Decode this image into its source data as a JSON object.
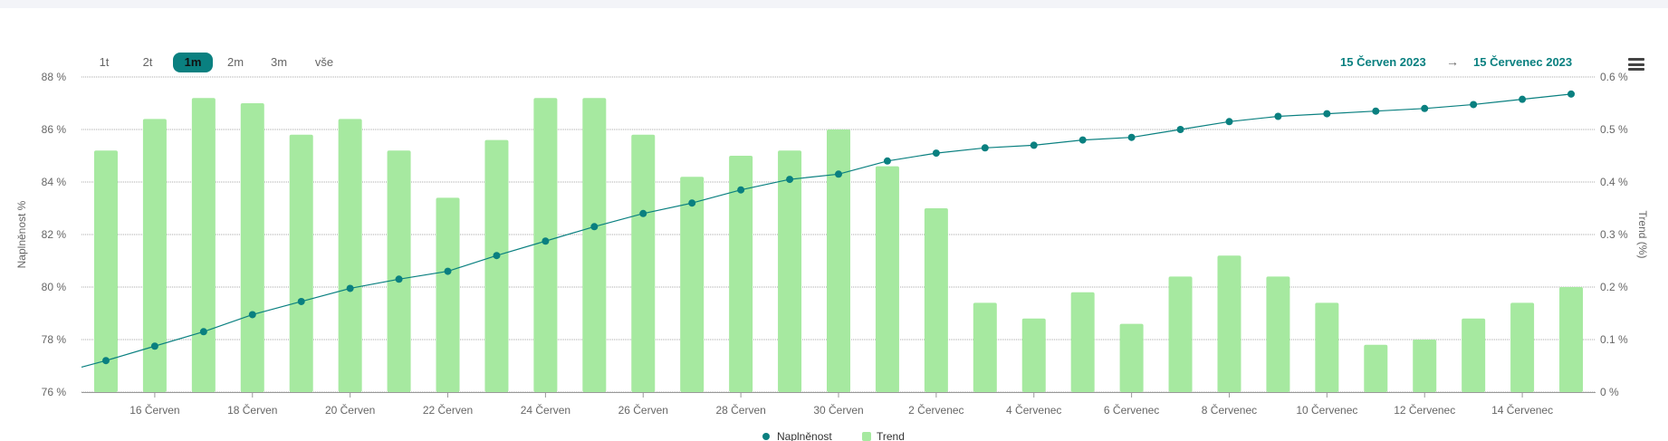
{
  "range_selector": {
    "buttons": [
      {
        "label": "1t",
        "active": false
      },
      {
        "label": "2t",
        "active": false
      },
      {
        "label": "1m",
        "active": true
      },
      {
        "label": "2m",
        "active": false
      },
      {
        "label": "3m",
        "active": false
      },
      {
        "label": "vše",
        "active": false
      }
    ],
    "from_date": "15 Červen 2023",
    "arrow": "→",
    "to_date": "15 Červenec 2023"
  },
  "menu": {
    "icon": "hamburger-menu-icon"
  },
  "colors": {
    "line": "#0a8080",
    "bar": "#a6e9a0",
    "grid": "#555555"
  },
  "chart_data": {
    "type": "bar+line",
    "categories": [
      "15 Červen",
      "16 Červen",
      "17 Červen",
      "18 Červen",
      "19 Červen",
      "20 Červen",
      "21 Červen",
      "22 Červen",
      "23 Červen",
      "24 Červen",
      "25 Červen",
      "26 Červen",
      "27 Červen",
      "28 Červen",
      "29 Červen",
      "30 Červen",
      "1 Červenec",
      "2 Červenec",
      "3 Červenec",
      "4 Červenec",
      "5 Červenec",
      "6 Červenec",
      "7 Červenec",
      "8 Červenec",
      "9 Červenec",
      "10 Červenec",
      "11 Červenec",
      "12 Červenec",
      "13 Červenec",
      "14 Červenec",
      "15 Červenec"
    ],
    "x_tick_labels": [
      "16 Červen",
      "18 Červen",
      "20 Červen",
      "22 Červen",
      "24 Červen",
      "26 Červen",
      "28 Červen",
      "30 Červen",
      "2 Červenec",
      "4 Červenec",
      "6 Červenec",
      "8 Červenec",
      "10 Červenec",
      "12 Červenec",
      "14 Červenec"
    ],
    "series": [
      {
        "name": "Trend",
        "axis": "right",
        "kind": "bar",
        "values": [
          0.46,
          0.52,
          0.56,
          0.55,
          0.49,
          0.52,
          0.46,
          0.37,
          0.48,
          0.56,
          0.56,
          0.49,
          0.41,
          0.45,
          0.46,
          0.5,
          0.43,
          0.35,
          0.17,
          0.14,
          0.19,
          0.13,
          0.22,
          0.26,
          0.22,
          0.17,
          0.09,
          0.1,
          0.14,
          0.17,
          0.2
        ]
      },
      {
        "name": "Naplněnost",
        "axis": "left",
        "kind": "line",
        "values": [
          77.2,
          77.75,
          78.3,
          78.95,
          79.45,
          79.95,
          80.3,
          80.6,
          81.2,
          81.75,
          82.3,
          82.8,
          83.2,
          83.7,
          84.1,
          84.3,
          84.8,
          85.1,
          85.3,
          85.4,
          85.6,
          85.7,
          86.0,
          86.3,
          86.5,
          86.6,
          86.7,
          86.8,
          86.95,
          87.15,
          87.35
        ]
      }
    ],
    "line_start_value": 76.95,
    "y_left": {
      "label": "Naplněnost %",
      "min": 76,
      "max": 88,
      "ticks": [
        "76 %",
        "78 %",
        "80 %",
        "82 %",
        "84 %",
        "86 %",
        "88 %"
      ]
    },
    "y_right": {
      "label": "Trend (%)",
      "min": 0,
      "max": 0.6,
      "ticks": [
        "0 %",
        "0.1 %",
        "0.2 %",
        "0.3 %",
        "0.4 %",
        "0.5 %",
        "0.6 %"
      ]
    },
    "legend": {
      "items": [
        "Naplněnost",
        "Trend"
      ],
      "position": "bottom-center"
    },
    "grid": true
  }
}
